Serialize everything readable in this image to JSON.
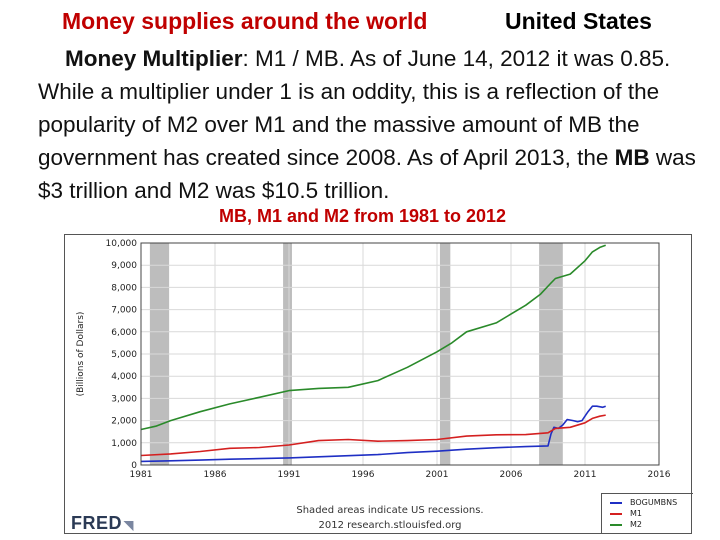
{
  "slide": {
    "title_left": "Money supplies around the world",
    "title_right": "United States",
    "body_bold_1": "Money Multiplier",
    "body_part_1": ": M1 / MB. As of June 14, 2012 it was 0.85. While a multiplier under 1 is an oddity, this is a reflection of the popularity of M2 over M1 and the massive amount of MB the government has created since 2008. As of April 2013, the ",
    "body_bold_2": "MB",
    "body_part_2": " was $3 trillion and M2 was $10.5 trillion.",
    "chart_heading": "MB, M1 and M2 from 1981 to 2012"
  },
  "footer": {
    "note_line1": "Shaded areas indicate US recessions.",
    "note_line2": "2012 research.stlouisfed.org",
    "logo": "FRED"
  },
  "colors": {
    "heading_red": "#c00000",
    "recession_gray": "#bdbdbd",
    "mb": "#1f2fc4",
    "m1": "#d42020",
    "m2": "#2a8a2a"
  },
  "chart_data": {
    "type": "line",
    "ylabel": "(Billions of Dollars)",
    "xlim": [
      1981,
      2016
    ],
    "ylim": [
      0,
      10000
    ],
    "x_ticks": [
      1981,
      1986,
      1991,
      1996,
      2001,
      2006,
      2011,
      2016
    ],
    "y_ticks": [
      0,
      1000,
      2000,
      3000,
      4000,
      5000,
      6000,
      7000,
      8000,
      9000,
      10000
    ],
    "y_tick_labels": [
      "0",
      "1,000",
      "2,000",
      "3,000",
      "4,000",
      "5,000",
      "6,000",
      "7,000",
      "8,000",
      "9,000",
      "10,000"
    ],
    "recessions": [
      [
        1981.6,
        1982.9
      ],
      [
        1990.6,
        1991.2
      ],
      [
        2001.2,
        2001.9
      ],
      [
        2007.9,
        2009.5
      ]
    ],
    "grid": true,
    "legend_position": "bottom-right",
    "series": [
      {
        "name": "BOGUMBNS",
        "color": "#1f2fc4",
        "x": [
          1981,
          1983,
          1985,
          1987,
          1989,
          1991,
          1993,
          1995,
          1997,
          1999,
          2001,
          2003,
          2005,
          2007,
          2008.5,
          2008.7,
          2008.9,
          2009.2,
          2009.5,
          2009.8,
          2010.2,
          2010.5,
          2010.8,
          2011.2,
          2011.5,
          2011.8,
          2012.2,
          2012.4
        ],
        "y": [
          160,
          190,
          220,
          260,
          290,
          320,
          370,
          420,
          470,
          560,
          620,
          710,
          780,
          830,
          860,
          1400,
          1700,
          1650,
          1800,
          2050,
          2000,
          1950,
          2000,
          2400,
          2650,
          2650,
          2600,
          2650
        ]
      },
      {
        "name": "M1",
        "color": "#d42020",
        "x": [
          1981,
          1983,
          1985,
          1987,
          1989,
          1991,
          1993,
          1995,
          1997,
          1999,
          2001,
          2003,
          2005,
          2007,
          2008.5,
          2009,
          2010,
          2011,
          2011.5,
          2012,
          2012.4
        ],
        "y": [
          430,
          500,
          610,
          750,
          790,
          900,
          1100,
          1150,
          1070,
          1100,
          1150,
          1300,
          1360,
          1370,
          1450,
          1650,
          1700,
          1900,
          2100,
          2200,
          2250
        ]
      },
      {
        "name": "M2",
        "color": "#2a8a2a",
        "x": [
          1981,
          1982,
          1983,
          1985,
          1987,
          1989,
          1991,
          1993,
          1995,
          1997,
          1999,
          2001,
          2002,
          2003,
          2005,
          2007,
          2008,
          2008.7,
          2009,
          2010,
          2011,
          2011.5,
          2012,
          2012.4
        ],
        "y": [
          1600,
          1750,
          2000,
          2400,
          2750,
          3050,
          3350,
          3450,
          3500,
          3800,
          4400,
          5100,
          5500,
          6000,
          6400,
          7200,
          7700,
          8200,
          8400,
          8600,
          9200,
          9600,
          9800,
          9900
        ]
      }
    ]
  }
}
